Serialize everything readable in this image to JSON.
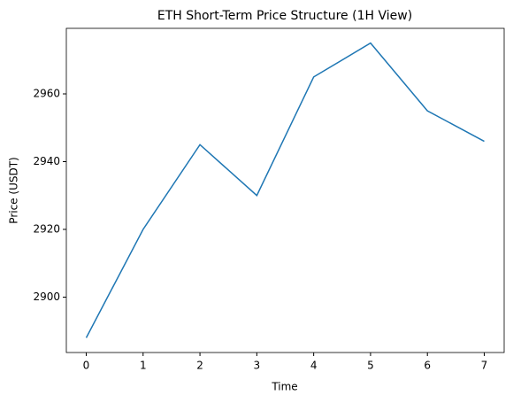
{
  "chart_data": {
    "type": "line",
    "title": "ETH Short-Term Price Structure (1H View)",
    "x_label": "Time",
    "y_label": "Price (USDT)",
    "x": [
      0,
      1,
      2,
      3,
      4,
      5,
      6,
      7
    ],
    "series": [
      {
        "name": null,
        "color": "#1f77b4",
        "values": [
          2888,
          2920,
          2945,
          2930,
          2965,
          2975,
          2955,
          2946
        ]
      }
    ],
    "xlim": [
      -0.35,
      7.35
    ],
    "xticks": [
      0,
      1,
      2,
      3,
      4,
      5,
      6,
      7
    ],
    "ylim": [
      2883.65,
      2979.35
    ],
    "yticks": [
      2900,
      2920,
      2940,
      2960
    ],
    "grid": false
  }
}
